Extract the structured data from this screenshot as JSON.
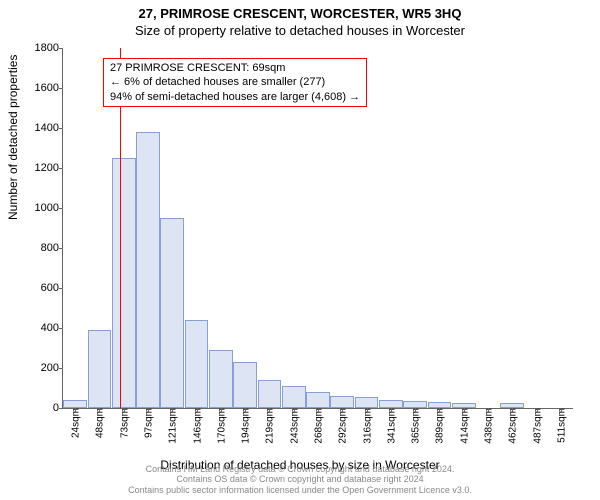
{
  "title_line1": "27, PRIMROSE CRESCENT, WORCESTER, WR5 3HQ",
  "title_line2": "Size of property relative to detached houses in Worcester",
  "ylabel": "Number of detached properties",
  "xlabel": "Distribution of detached houses by size in Worcester",
  "footer_line1": "Contains HM Land Registry data © Crown copyright and database right 2024.",
  "footer_line2": "Contains OS data © Crown copyright and database right 2024",
  "footer_line3": "Contains public sector information licensed under the Open Government Licence v3.0.",
  "annotation": {
    "line1": "27 PRIMROSE CRESCENT: 69sqm",
    "line2": "← 6% of detached houses are smaller (277)",
    "line3": "94% of semi-detached houses are larger (4,608) →"
  },
  "chart": {
    "type": "histogram",
    "ylim": [
      0,
      1800
    ],
    "ytick_step": 200,
    "bar_fill": "#dde4f4",
    "bar_stroke": "#86a0d7",
    "background": "#ffffff",
    "reference_x_value": 69,
    "reference_line_color": "#ff0000",
    "x_categories": [
      "24sqm",
      "48sqm",
      "73sqm",
      "97sqm",
      "121sqm",
      "146sqm",
      "170sqm",
      "194sqm",
      "219sqm",
      "243sqm",
      "268sqm",
      "292sqm",
      "316sqm",
      "341sqm",
      "365sqm",
      "389sqm",
      "414sqm",
      "438sqm",
      "462sqm",
      "487sqm",
      "511sqm"
    ],
    "values": [
      40,
      390,
      1250,
      1380,
      950,
      440,
      290,
      230,
      140,
      110,
      80,
      60,
      55,
      40,
      35,
      30,
      25,
      0,
      25,
      0,
      0
    ],
    "bar_width_ratio": 0.98,
    "annotation_box_border": "#ff0000",
    "title_fontsize": 13,
    "axis_fontsize": 12,
    "tick_fontsize": 10
  }
}
